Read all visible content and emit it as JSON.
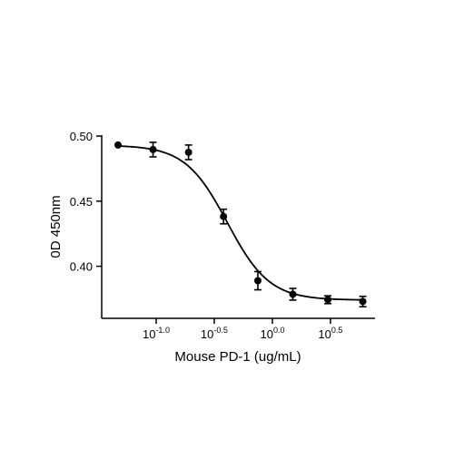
{
  "chart_data": {
    "type": "scatter",
    "xlabel": "Mouse PD-1 (ug/mL)",
    "ylabel": "0D 450nm",
    "xscale": "log",
    "x": [
      0.047,
      0.094,
      0.19,
      0.38,
      0.75,
      1.5,
      3,
      6
    ],
    "values": [
      0.4931,
      0.4896,
      0.4875,
      0.4382,
      0.3889,
      0.3785,
      0.3743,
      0.3729
    ],
    "errors": [
      0,
      0.0056,
      0.0056,
      0.0056,
      0.007,
      0.0045,
      0.003,
      0.004
    ],
    "fit": {
      "top": 0.493,
      "bottom": 0.374,
      "ec50": 0.41,
      "hill": 2.4
    },
    "color": "#000000",
    "xlim": [
      0.034,
      7.64
    ],
    "ylim": [
      0.36,
      0.5
    ],
    "xticks": [
      {
        "value": 0.1,
        "label": "10",
        "power": "-1.0"
      },
      {
        "value": 0.316,
        "label": "10",
        "power": "-0.5"
      },
      {
        "value": 1,
        "label": "10",
        "power": "0.0"
      },
      {
        "value": 3.16,
        "label": "10",
        "power": "0.5"
      }
    ],
    "yticks": [
      {
        "value": 0.4,
        "label": "0.40"
      },
      {
        "value": 0.45,
        "label": "0.45"
      },
      {
        "value": 0.5,
        "label": "0.50"
      }
    ]
  }
}
